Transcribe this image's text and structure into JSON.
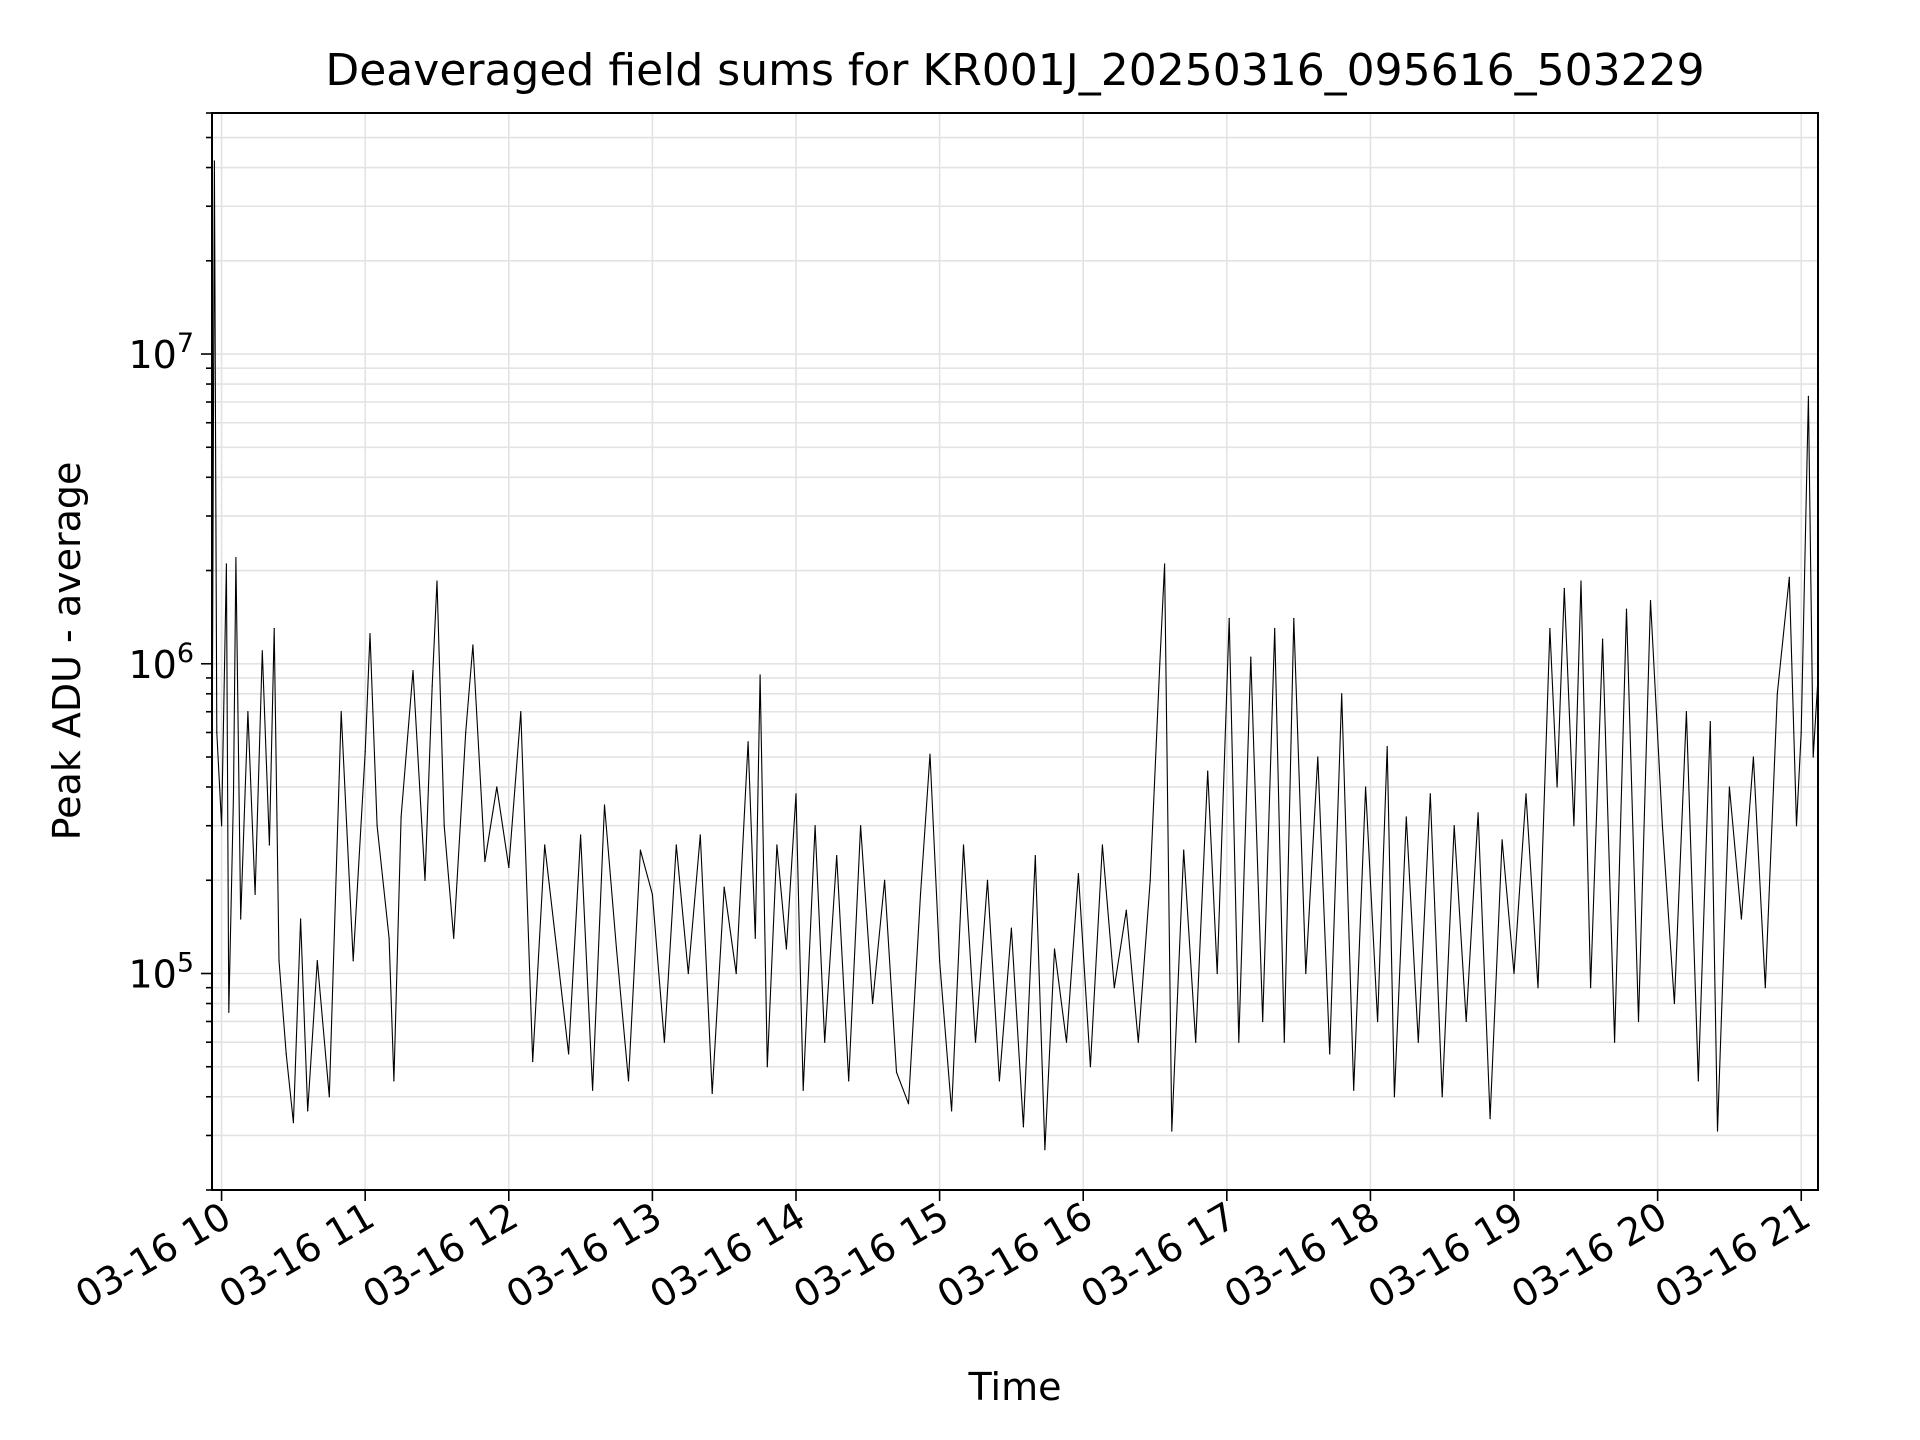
{
  "chart_data": {
    "type": "line",
    "title": "Deaveraged field sums for KR001J_20250316_095616_503229",
    "xlabel": "Time",
    "ylabel": "Peak ADU - average",
    "yscale": "log",
    "grid": true,
    "x_range": [
      "2025-03-16 09:56",
      "2025-03-16 21:07"
    ],
    "ylim": [
      20000,
      60000000
    ],
    "x_ticks": [
      {
        "value": "2025-03-16 10:00",
        "label": "03-16 10"
      },
      {
        "value": "2025-03-16 11:00",
        "label": "03-16 11"
      },
      {
        "value": "2025-03-16 12:00",
        "label": "03-16 12"
      },
      {
        "value": "2025-03-16 13:00",
        "label": "03-16 13"
      },
      {
        "value": "2025-03-16 14:00",
        "label": "03-16 14"
      },
      {
        "value": "2025-03-16 15:00",
        "label": "03-16 15"
      },
      {
        "value": "2025-03-16 16:00",
        "label": "03-16 16"
      },
      {
        "value": "2025-03-16 17:00",
        "label": "03-16 17"
      },
      {
        "value": "2025-03-16 18:00",
        "label": "03-16 18"
      },
      {
        "value": "2025-03-16 19:00",
        "label": "03-16 19"
      },
      {
        "value": "2025-03-16 20:00",
        "label": "03-16 20"
      },
      {
        "value": "2025-03-16 21:00",
        "label": "03-16 21"
      }
    ],
    "y_ticks": [
      {
        "value": 100000,
        "base": "10",
        "exp": "5"
      },
      {
        "value": 1000000,
        "base": "10",
        "exp": "6"
      },
      {
        "value": 10000000,
        "base": "10",
        "exp": "7"
      }
    ],
    "series": [
      {
        "color": "#000000",
        "points": [
          [
            "2025-03-16 09:56",
            350000
          ],
          [
            "2025-03-16 09:57",
            42000000
          ],
          [
            "2025-03-16 09:58",
            600000
          ],
          [
            "2025-03-16 10:00",
            300000
          ],
          [
            "2025-03-16 10:02",
            2100000
          ],
          [
            "2025-03-16 10:03",
            75000
          ],
          [
            "2025-03-16 10:05",
            380000
          ],
          [
            "2025-03-16 10:06",
            2200000
          ],
          [
            "2025-03-16 10:08",
            150000
          ],
          [
            "2025-03-16 10:11",
            700000
          ],
          [
            "2025-03-16 10:14",
            180000
          ],
          [
            "2025-03-16 10:17",
            1100000
          ],
          [
            "2025-03-16 10:20",
            260000
          ],
          [
            "2025-03-16 10:22",
            1300000
          ],
          [
            "2025-03-16 10:24",
            110000
          ],
          [
            "2025-03-16 10:27",
            55000
          ],
          [
            "2025-03-16 10:30",
            33000
          ],
          [
            "2025-03-16 10:33",
            150000
          ],
          [
            "2025-03-16 10:36",
            36000
          ],
          [
            "2025-03-16 10:40",
            110000
          ],
          [
            "2025-03-16 10:45",
            40000
          ],
          [
            "2025-03-16 10:50",
            700000
          ],
          [
            "2025-03-16 10:55",
            110000
          ],
          [
            "2025-03-16 11:00",
            520000
          ],
          [
            "2025-03-16 11:02",
            1250000
          ],
          [
            "2025-03-16 11:05",
            300000
          ],
          [
            "2025-03-16 11:10",
            130000
          ],
          [
            "2025-03-16 11:12",
            45000
          ],
          [
            "2025-03-16 11:15",
            320000
          ],
          [
            "2025-03-16 11:20",
            950000
          ],
          [
            "2025-03-16 11:25",
            200000
          ],
          [
            "2025-03-16 11:28",
            850000
          ],
          [
            "2025-03-16 11:30",
            1850000
          ],
          [
            "2025-03-16 11:33",
            300000
          ],
          [
            "2025-03-16 11:37",
            130000
          ],
          [
            "2025-03-16 11:42",
            600000
          ],
          [
            "2025-03-16 11:45",
            1150000
          ],
          [
            "2025-03-16 11:50",
            230000
          ],
          [
            "2025-03-16 11:55",
            400000
          ],
          [
            "2025-03-16 12:00",
            220000
          ],
          [
            "2025-03-16 12:05",
            700000
          ],
          [
            "2025-03-16 12:10",
            52000
          ],
          [
            "2025-03-16 12:15",
            260000
          ],
          [
            "2025-03-16 12:20",
            120000
          ],
          [
            "2025-03-16 12:25",
            55000
          ],
          [
            "2025-03-16 12:30",
            280000
          ],
          [
            "2025-03-16 12:35",
            42000
          ],
          [
            "2025-03-16 12:40",
            350000
          ],
          [
            "2025-03-16 12:45",
            120000
          ],
          [
            "2025-03-16 12:50",
            45000
          ],
          [
            "2025-03-16 12:55",
            250000
          ],
          [
            "2025-03-16 13:00",
            180000
          ],
          [
            "2025-03-16 13:05",
            60000
          ],
          [
            "2025-03-16 13:10",
            260000
          ],
          [
            "2025-03-16 13:15",
            100000
          ],
          [
            "2025-03-16 13:20",
            280000
          ],
          [
            "2025-03-16 13:25",
            41000
          ],
          [
            "2025-03-16 13:30",
            190000
          ],
          [
            "2025-03-16 13:35",
            100000
          ],
          [
            "2025-03-16 13:40",
            560000
          ],
          [
            "2025-03-16 13:43",
            130000
          ],
          [
            "2025-03-16 13:45",
            920000
          ],
          [
            "2025-03-16 13:48",
            50000
          ],
          [
            "2025-03-16 13:52",
            260000
          ],
          [
            "2025-03-16 13:56",
            120000
          ],
          [
            "2025-03-16 14:00",
            380000
          ],
          [
            "2025-03-16 14:03",
            42000
          ],
          [
            "2025-03-16 14:08",
            300000
          ],
          [
            "2025-03-16 14:12",
            60000
          ],
          [
            "2025-03-16 14:17",
            240000
          ],
          [
            "2025-03-16 14:22",
            45000
          ],
          [
            "2025-03-16 14:27",
            300000
          ],
          [
            "2025-03-16 14:32",
            80000
          ],
          [
            "2025-03-16 14:37",
            200000
          ],
          [
            "2025-03-16 14:42",
            48000
          ],
          [
            "2025-03-16 14:47",
            38000
          ],
          [
            "2025-03-16 14:52",
            180000
          ],
          [
            "2025-03-16 14:56",
            510000
          ],
          [
            "2025-03-16 15:00",
            110000
          ],
          [
            "2025-03-16 15:05",
            36000
          ],
          [
            "2025-03-16 15:10",
            260000
          ],
          [
            "2025-03-16 15:15",
            60000
          ],
          [
            "2025-03-16 15:20",
            200000
          ],
          [
            "2025-03-16 15:25",
            45000
          ],
          [
            "2025-03-16 15:30",
            140000
          ],
          [
            "2025-03-16 15:35",
            32000
          ],
          [
            "2025-03-16 15:40",
            240000
          ],
          [
            "2025-03-16 15:44",
            27000
          ],
          [
            "2025-03-16 15:48",
            120000
          ],
          [
            "2025-03-16 15:53",
            60000
          ],
          [
            "2025-03-16 15:58",
            210000
          ],
          [
            "2025-03-16 16:03",
            50000
          ],
          [
            "2025-03-16 16:08",
            260000
          ],
          [
            "2025-03-16 16:13",
            90000
          ],
          [
            "2025-03-16 16:18",
            160000
          ],
          [
            "2025-03-16 16:23",
            60000
          ],
          [
            "2025-03-16 16:28",
            200000
          ],
          [
            "2025-03-16 16:32",
            1000000
          ],
          [
            "2025-03-16 16:34",
            2100000
          ],
          [
            "2025-03-16 16:37",
            31000
          ],
          [
            "2025-03-16 16:42",
            250000
          ],
          [
            "2025-03-16 16:47",
            60000
          ],
          [
            "2025-03-16 16:52",
            450000
          ],
          [
            "2025-03-16 16:56",
            100000
          ],
          [
            "2025-03-16 17:01",
            1400000
          ],
          [
            "2025-03-16 17:05",
            60000
          ],
          [
            "2025-03-16 17:10",
            1050000
          ],
          [
            "2025-03-16 17:15",
            70000
          ],
          [
            "2025-03-16 17:20",
            1300000
          ],
          [
            "2025-03-16 17:24",
            60000
          ],
          [
            "2025-03-16 17:28",
            1400000
          ],
          [
            "2025-03-16 17:33",
            100000
          ],
          [
            "2025-03-16 17:38",
            500000
          ],
          [
            "2025-03-16 17:43",
            55000
          ],
          [
            "2025-03-16 17:48",
            800000
          ],
          [
            "2025-03-16 17:53",
            42000
          ],
          [
            "2025-03-16 17:58",
            400000
          ],
          [
            "2025-03-16 18:03",
            70000
          ],
          [
            "2025-03-16 18:07",
            540000
          ],
          [
            "2025-03-16 18:10",
            40000
          ],
          [
            "2025-03-16 18:15",
            320000
          ],
          [
            "2025-03-16 18:20",
            60000
          ],
          [
            "2025-03-16 18:25",
            380000
          ],
          [
            "2025-03-16 18:30",
            40000
          ],
          [
            "2025-03-16 18:35",
            300000
          ],
          [
            "2025-03-16 18:40",
            70000
          ],
          [
            "2025-03-16 18:45",
            330000
          ],
          [
            "2025-03-16 18:50",
            34000
          ],
          [
            "2025-03-16 18:55",
            270000
          ],
          [
            "2025-03-16 19:00",
            100000
          ],
          [
            "2025-03-16 19:05",
            380000
          ],
          [
            "2025-03-16 19:10",
            90000
          ],
          [
            "2025-03-16 19:15",
            1300000
          ],
          [
            "2025-03-16 19:18",
            400000
          ],
          [
            "2025-03-16 19:21",
            1750000
          ],
          [
            "2025-03-16 19:25",
            300000
          ],
          [
            "2025-03-16 19:28",
            1850000
          ],
          [
            "2025-03-16 19:32",
            90000
          ],
          [
            "2025-03-16 19:37",
            1200000
          ],
          [
            "2025-03-16 19:42",
            60000
          ],
          [
            "2025-03-16 19:47",
            1500000
          ],
          [
            "2025-03-16 19:52",
            70000
          ],
          [
            "2025-03-16 19:57",
            1600000
          ],
          [
            "2025-03-16 20:02",
            300000
          ],
          [
            "2025-03-16 20:07",
            80000
          ],
          [
            "2025-03-16 20:12",
            700000
          ],
          [
            "2025-03-16 20:17",
            45000
          ],
          [
            "2025-03-16 20:22",
            650000
          ],
          [
            "2025-03-16 20:25",
            31000
          ],
          [
            "2025-03-16 20:30",
            400000
          ],
          [
            "2025-03-16 20:35",
            150000
          ],
          [
            "2025-03-16 20:40",
            500000
          ],
          [
            "2025-03-16 20:45",
            90000
          ],
          [
            "2025-03-16 20:50",
            800000
          ],
          [
            "2025-03-16 20:55",
            1900000
          ],
          [
            "2025-03-16 20:58",
            300000
          ],
          [
            "2025-03-16 21:00",
            600000
          ],
          [
            "2025-03-16 21:03",
            7300000
          ],
          [
            "2025-03-16 21:05",
            500000
          ],
          [
            "2025-03-16 21:07",
            900000
          ]
        ]
      }
    ]
  }
}
